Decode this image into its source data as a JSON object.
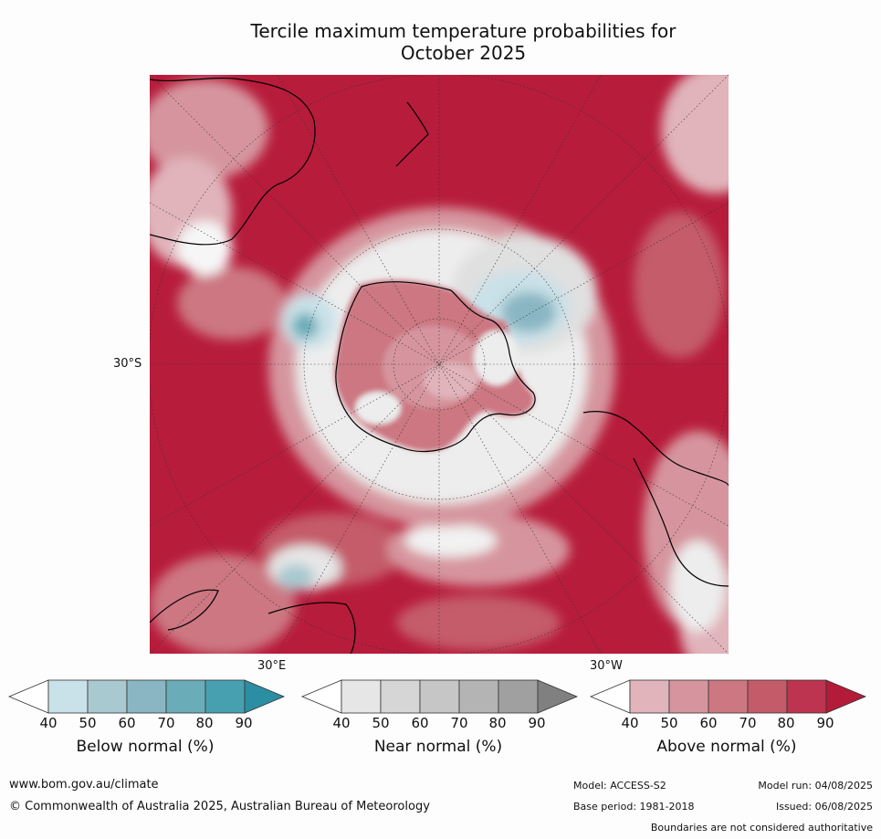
{
  "title_line1": "Tercile maximum temperature probabilities for",
  "title_line2": "October 2025",
  "map": {
    "lat_label": "30°S",
    "lon_labels": [
      "30°E",
      "30°W"
    ],
    "ocean_color": "#b71c3b"
  },
  "colorbars": [
    {
      "label": "Below normal (%)",
      "ticks": [
        "40",
        "50",
        "60",
        "70",
        "80",
        "90"
      ],
      "colors": [
        "#ffffff",
        "#c9e1e8",
        "#a8c9d0",
        "#8ab6c3",
        "#6aacb8",
        "#47a0b0",
        "#2c8ea3"
      ]
    },
    {
      "label": "Near normal (%)",
      "ticks": [
        "40",
        "50",
        "60",
        "70",
        "80",
        "90"
      ],
      "colors": [
        "#ffffff",
        "#e6e6e6",
        "#d6d6d6",
        "#c6c6c6",
        "#b4b4b4",
        "#a0a0a0",
        "#808080"
      ]
    },
    {
      "label": "Above normal (%)",
      "ticks": [
        "40",
        "50",
        "60",
        "70",
        "80",
        "90"
      ],
      "colors": [
        "#ffffff",
        "#e0b4ba",
        "#d6959e",
        "#cc7782",
        "#c45b69",
        "#bd3450",
        "#b31b39"
      ]
    }
  ],
  "footer": {
    "website": "www.bom.gov.au/climate",
    "copyright": "© Commonwealth of Australia 2025, Australian Bureau of Meteorology",
    "model": "Model: ACCESS-S2",
    "model_run": "Model run: 04/08/2025",
    "base_period": "Base period: 1981-2018",
    "issued": "Issued: 06/08/2025",
    "disclaimer": "Boundaries are not considered authoritative"
  }
}
